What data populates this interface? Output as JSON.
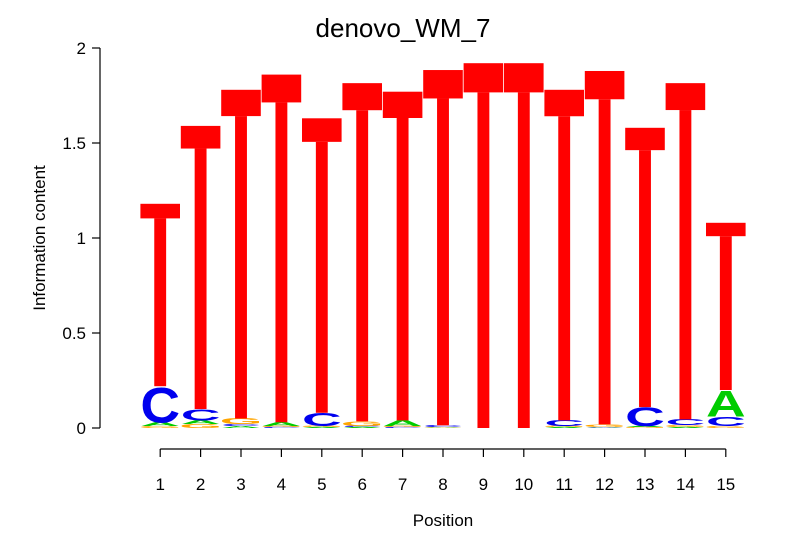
{
  "chart_data": {
    "type": "sequence-logo",
    "title": "denovo_WM_7",
    "xlabel": "Position",
    "ylabel": "Information content",
    "ylim": [
      0,
      2
    ],
    "y_ticks": [
      "0",
      "0.5",
      "1",
      "1.5",
      "2"
    ],
    "y_tick_values": [
      0,
      0.5,
      1,
      1.5,
      2
    ],
    "x_ticks": [
      "1",
      "2",
      "3",
      "4",
      "5",
      "6",
      "7",
      "8",
      "9",
      "10",
      "11",
      "12",
      "13",
      "14",
      "15"
    ],
    "colors": {
      "A": "#00cc00",
      "C": "#0000ee",
      "G": "#ffa500",
      "T": "#ff0000"
    },
    "positions": [
      {
        "pos": 1,
        "letters": [
          {
            "base": "G",
            "bits": 0.01
          },
          {
            "base": "A",
            "bits": 0.02
          },
          {
            "base": "C",
            "bits": 0.19
          },
          {
            "base": "T",
            "bits": 0.96
          }
        ]
      },
      {
        "pos": 2,
        "letters": [
          {
            "base": "G",
            "bits": 0.02
          },
          {
            "base": "A",
            "bits": 0.02
          },
          {
            "base": "C",
            "bits": 0.06
          },
          {
            "base": "T",
            "bits": 1.49
          }
        ]
      },
      {
        "pos": 3,
        "letters": [
          {
            "base": "A",
            "bits": 0.01
          },
          {
            "base": "C",
            "bits": 0.01
          },
          {
            "base": "G",
            "bits": 0.03
          },
          {
            "base": "T",
            "bits": 1.73
          }
        ]
      },
      {
        "pos": 4,
        "letters": [
          {
            "base": "C",
            "bits": 0.005
          },
          {
            "base": "G",
            "bits": 0.005
          },
          {
            "base": "A",
            "bits": 0.02
          },
          {
            "base": "T",
            "bits": 1.83
          }
        ]
      },
      {
        "pos": 5,
        "letters": [
          {
            "base": "A",
            "bits": 0.005
          },
          {
            "base": "G",
            "bits": 0.005
          },
          {
            "base": "C",
            "bits": 0.07
          },
          {
            "base": "T",
            "bits": 1.55
          }
        ]
      },
      {
        "pos": 6,
        "letters": [
          {
            "base": "A",
            "bits": 0.005
          },
          {
            "base": "C",
            "bits": 0.005
          },
          {
            "base": "G",
            "bits": 0.025
          },
          {
            "base": "T",
            "bits": 1.78
          }
        ]
      },
      {
        "pos": 7,
        "letters": [
          {
            "base": "C",
            "bits": 0.005
          },
          {
            "base": "G",
            "bits": 0.005
          },
          {
            "base": "A",
            "bits": 0.03
          },
          {
            "base": "T",
            "bits": 1.73
          }
        ]
      },
      {
        "pos": 8,
        "letters": [
          {
            "base": "A",
            "bits": 0.002
          },
          {
            "base": "G",
            "bits": 0.002
          },
          {
            "base": "C",
            "bits": 0.01
          },
          {
            "base": "T",
            "bits": 1.87
          }
        ]
      },
      {
        "pos": 9,
        "letters": [
          {
            "base": "T",
            "bits": 1.92
          }
        ]
      },
      {
        "pos": 10,
        "letters": [
          {
            "base": "T",
            "bits": 1.92
          }
        ]
      },
      {
        "pos": 11,
        "letters": [
          {
            "base": "A",
            "bits": 0.005
          },
          {
            "base": "G",
            "bits": 0.005
          },
          {
            "base": "C",
            "bits": 0.03
          },
          {
            "base": "T",
            "bits": 1.74
          }
        ]
      },
      {
        "pos": 12,
        "letters": [
          {
            "base": "A",
            "bits": 0.002
          },
          {
            "base": "C",
            "bits": 0.002
          },
          {
            "base": "G",
            "bits": 0.015
          },
          {
            "base": "T",
            "bits": 1.86
          }
        ]
      },
      {
        "pos": 13,
        "letters": [
          {
            "base": "G",
            "bits": 0.005
          },
          {
            "base": "A",
            "bits": 0.005
          },
          {
            "base": "C",
            "bits": 0.1
          },
          {
            "base": "T",
            "bits": 1.47
          }
        ]
      },
      {
        "pos": 14,
        "letters": [
          {
            "base": "A",
            "bits": 0.005
          },
          {
            "base": "G",
            "bits": 0.01
          },
          {
            "base": "C",
            "bits": 0.03
          },
          {
            "base": "T",
            "bits": 1.77
          }
        ]
      },
      {
        "pos": 15,
        "letters": [
          {
            "base": "G",
            "bits": 0.01
          },
          {
            "base": "C",
            "bits": 0.05
          },
          {
            "base": "A",
            "bits": 0.14
          },
          {
            "base": "T",
            "bits": 0.88
          }
        ]
      }
    ]
  }
}
